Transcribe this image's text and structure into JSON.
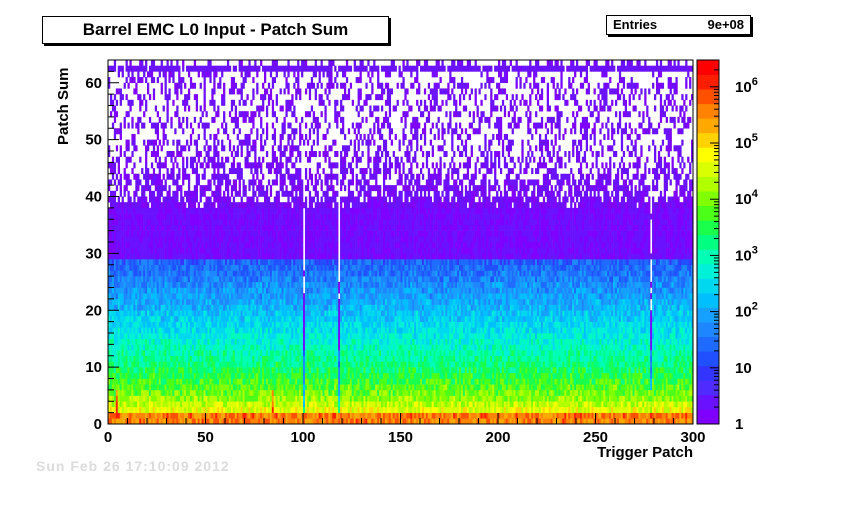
{
  "title": "Barrel EMC L0 Input - Patch Sum",
  "stats": {
    "entries_label": "Entries",
    "entries_value": "9e+08"
  },
  "footer_text": "Sun Feb 26 17:10:09 2012",
  "chart_data": {
    "type": "heatmap",
    "title": "Barrel EMC L0 Input - Patch Sum",
    "xlabel": "Trigger Patch",
    "ylabel": "Patch Sum",
    "xlim": [
      0,
      300
    ],
    "ylim": [
      0,
      64
    ],
    "x_ticks": [
      "0",
      "50",
      "100",
      "150",
      "200",
      "250",
      "300"
    ],
    "y_ticks": [
      "0",
      "10",
      "20",
      "30",
      "40",
      "50",
      "60"
    ],
    "z_scale": "log",
    "z_range": [
      1,
      3000000
    ],
    "z_ticks": [
      "1",
      "10",
      "10^2",
      "10^3",
      "10^4",
      "10^5",
      "10^6"
    ],
    "entries": "9e+08",
    "x_bins": 300,
    "y_bins": 64,
    "profile": [
      {
        "patch_sum": 0,
        "entries_per_bin": 50000
      },
      {
        "patch_sum": 1,
        "entries_per_bin": 3000000
      },
      {
        "patch_sum": 2,
        "entries_per_bin": 60000
      },
      {
        "patch_sum": 5,
        "entries_per_bin": 10000
      },
      {
        "patch_sum": 10,
        "entries_per_bin": 2000
      },
      {
        "patch_sum": 20,
        "entries_per_bin": 150
      },
      {
        "patch_sum": 30,
        "entries_per_bin": 15
      },
      {
        "patch_sum": 40,
        "entries_per_bin": 2
      },
      {
        "patch_sum": 50,
        "entries_per_bin": 1
      },
      {
        "patch_sum": 62,
        "entries_per_bin": 1
      }
    ],
    "low_patches": [
      100,
      118,
      278
    ],
    "hot_patches": [
      4,
      84,
      278
    ],
    "grid": false,
    "colorbar": "right"
  }
}
